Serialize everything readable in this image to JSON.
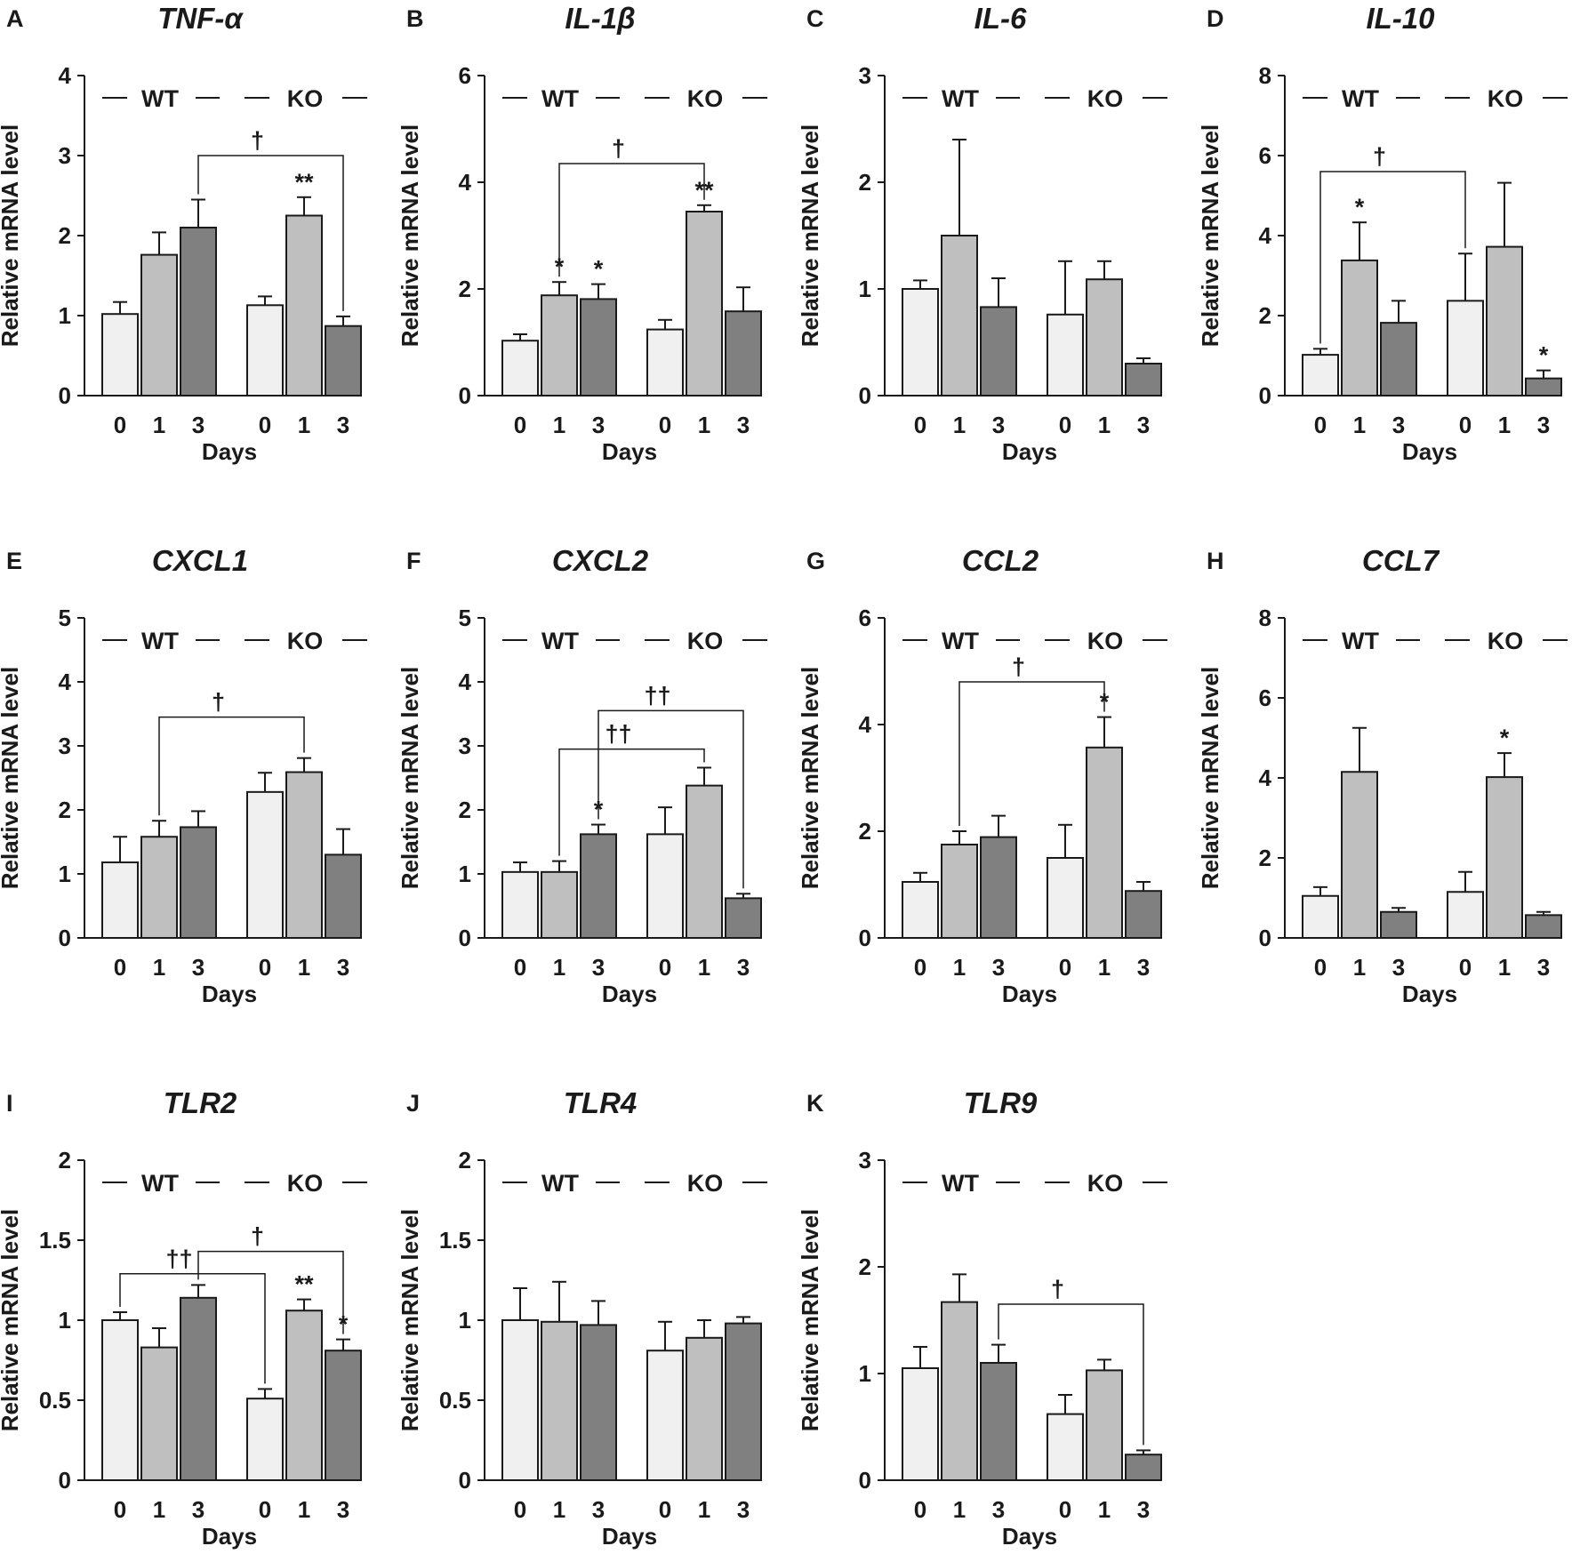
{
  "figure": {
    "xlabel": "Days",
    "ylabel": "Relative mRNA level",
    "groups": [
      "WT",
      "KO"
    ],
    "days": [
      "0",
      "1",
      "3"
    ],
    "day_colors": [
      "#f0f0f0",
      "#bfbfbf",
      "#808080"
    ]
  },
  "chart_data": [
    {
      "panel": "A",
      "title": "TNF-α",
      "type": "bar",
      "ylim": [
        0,
        4
      ],
      "ticks": [
        "0",
        "1",
        "2",
        "3",
        "4"
      ],
      "categories": [
        "WT 0",
        "WT 1",
        "WT 3",
        "KO 0",
        "KO 1",
        "KO 3"
      ],
      "values": [
        1.02,
        1.76,
        2.1,
        1.13,
        2.25,
        0.87
      ],
      "errors": [
        0.15,
        0.28,
        0.35,
        0.11,
        0.23,
        0.12
      ],
      "stars": [
        {
          "bar": 4,
          "text": "**"
        }
      ],
      "brackets": [
        {
          "from": 2,
          "to": 5,
          "y": 3.0,
          "text": "†"
        }
      ]
    },
    {
      "panel": "B",
      "title": "IL-1β",
      "type": "bar",
      "ylim": [
        0,
        6
      ],
      "ticks": [
        "0",
        "2",
        "4",
        "6"
      ],
      "categories": [
        "WT 0",
        "WT 1",
        "WT 3",
        "KO 0",
        "KO 1",
        "KO 3"
      ],
      "values": [
        1.03,
        1.88,
        1.81,
        1.24,
        3.45,
        1.58
      ],
      "errors": [
        0.12,
        0.25,
        0.28,
        0.18,
        0.12,
        0.45
      ],
      "stars": [
        {
          "bar": 1,
          "text": "*"
        },
        {
          "bar": 2,
          "text": "*"
        },
        {
          "bar": 4,
          "text": "**"
        }
      ],
      "brackets": [
        {
          "from": 1,
          "to": 4,
          "y": 4.35,
          "text": "†"
        }
      ]
    },
    {
      "panel": "C",
      "title": "IL-6",
      "type": "bar",
      "ylim": [
        0,
        3
      ],
      "ticks": [
        "0",
        "1",
        "2",
        "3"
      ],
      "categories": [
        "WT 0",
        "WT 1",
        "WT 3",
        "KO 0",
        "KO 1",
        "KO 3"
      ],
      "values": [
        1.0,
        1.5,
        0.83,
        0.76,
        1.09,
        0.3
      ],
      "errors": [
        0.08,
        0.9,
        0.27,
        0.5,
        0.17,
        0.05
      ],
      "stars": [],
      "brackets": []
    },
    {
      "panel": "D",
      "title": "IL-10",
      "type": "bar",
      "ylim": [
        0,
        8
      ],
      "ticks": [
        "0",
        "2",
        "4",
        "6",
        "8"
      ],
      "categories": [
        "WT 0",
        "WT 1",
        "WT 3",
        "KO 0",
        "KO 1",
        "KO 3"
      ],
      "values": [
        1.02,
        3.38,
        1.82,
        2.37,
        3.72,
        0.43
      ],
      "errors": [
        0.15,
        0.95,
        0.55,
        1.18,
        1.6,
        0.2
      ],
      "stars": [
        {
          "bar": 1,
          "text": "*"
        },
        {
          "bar": 5,
          "text": "*"
        }
      ],
      "brackets": [
        {
          "from": 0,
          "to": 3,
          "y": 5.6,
          "text": "†"
        }
      ]
    },
    {
      "panel": "E",
      "title": "CXCL1",
      "type": "bar",
      "ylim": [
        0,
        5
      ],
      "ticks": [
        "0",
        "1",
        "2",
        "3",
        "4",
        "5"
      ],
      "categories": [
        "WT 0",
        "WT 1",
        "WT 3",
        "KO 0",
        "KO 1",
        "KO 3"
      ],
      "values": [
        1.18,
        1.58,
        1.73,
        2.28,
        2.59,
        1.3
      ],
      "errors": [
        0.4,
        0.25,
        0.25,
        0.3,
        0.22,
        0.4
      ],
      "stars": [],
      "brackets": [
        {
          "from": 1,
          "to": 4,
          "y": 3.45,
          "text": "†"
        }
      ]
    },
    {
      "panel": "F",
      "title": "CXCL2",
      "type": "bar",
      "ylim": [
        0,
        5
      ],
      "ticks": [
        "0",
        "1",
        "2",
        "3",
        "4",
        "5"
      ],
      "categories": [
        "WT 0",
        "WT 1",
        "WT 3",
        "KO 0",
        "KO 1",
        "KO 3"
      ],
      "values": [
        1.03,
        1.03,
        1.62,
        1.62,
        2.38,
        0.62
      ],
      "errors": [
        0.15,
        0.17,
        0.15,
        0.42,
        0.28,
        0.07
      ],
      "stars": [
        {
          "bar": 2,
          "text": "*"
        }
      ],
      "brackets": [
        {
          "from": 1,
          "to": 4,
          "y": 2.95,
          "text": "††"
        },
        {
          "from": 2,
          "to": 5,
          "y": 3.55,
          "text": "††"
        }
      ]
    },
    {
      "panel": "G",
      "title": "CCL2",
      "type": "bar",
      "ylim": [
        0,
        6
      ],
      "ticks": [
        "0",
        "2",
        "4",
        "6"
      ],
      "categories": [
        "WT 0",
        "WT 1",
        "WT 3",
        "KO 0",
        "KO 1",
        "KO 3"
      ],
      "values": [
        1.05,
        1.75,
        1.89,
        1.5,
        3.57,
        0.88
      ],
      "errors": [
        0.17,
        0.25,
        0.4,
        0.62,
        0.57,
        0.17
      ],
      "stars": [
        {
          "bar": 4,
          "text": "*"
        }
      ],
      "brackets": [
        {
          "from": 1,
          "to": 4,
          "y": 4.8,
          "text": "†"
        }
      ]
    },
    {
      "panel": "H",
      "title": "CCL7",
      "type": "bar",
      "ylim": [
        0,
        8
      ],
      "ticks": [
        "0",
        "2",
        "4",
        "6",
        "8"
      ],
      "categories": [
        "WT 0",
        "WT 1",
        "WT 3",
        "KO 0",
        "KO 1",
        "KO 3"
      ],
      "values": [
        1.05,
        4.15,
        0.65,
        1.15,
        4.02,
        0.57
      ],
      "errors": [
        0.22,
        1.1,
        0.1,
        0.5,
        0.6,
        0.08
      ],
      "stars": [
        {
          "bar": 4,
          "text": "*"
        }
      ],
      "brackets": []
    },
    {
      "panel": "I",
      "title": "TLR2",
      "type": "bar",
      "ylim": [
        0,
        2
      ],
      "ticks": [
        "0",
        "0.5",
        "1",
        "1.5",
        "2"
      ],
      "categories": [
        "WT 0",
        "WT 1",
        "WT 3",
        "KO 0",
        "KO 1",
        "KO 3"
      ],
      "values": [
        1.0,
        0.83,
        1.14,
        0.51,
        1.06,
        0.81
      ],
      "errors": [
        0.05,
        0.12,
        0.08,
        0.06,
        0.07,
        0.07
      ],
      "stars": [
        {
          "bar": 4,
          "text": "**"
        },
        {
          "bar": 5,
          "text": "*"
        }
      ],
      "brackets": [
        {
          "from": 0,
          "to": 3,
          "y": 1.29,
          "text": "††"
        },
        {
          "from": 2,
          "to": 5,
          "y": 1.43,
          "text": "†"
        }
      ]
    },
    {
      "panel": "J",
      "title": "TLR4",
      "type": "bar",
      "ylim": [
        0,
        2
      ],
      "ticks": [
        "0",
        "0.5",
        "1",
        "1.5",
        "2"
      ],
      "categories": [
        "WT 0",
        "WT 1",
        "WT 3",
        "KO 0",
        "KO 1",
        "KO 3"
      ],
      "values": [
        1.0,
        0.99,
        0.97,
        0.81,
        0.89,
        0.98
      ],
      "errors": [
        0.2,
        0.25,
        0.15,
        0.18,
        0.11,
        0.04
      ],
      "stars": [],
      "brackets": []
    },
    {
      "panel": "K",
      "title": "TLR9",
      "type": "bar",
      "ylim": [
        0,
        3
      ],
      "ticks": [
        "0",
        "1",
        "2",
        "3"
      ],
      "categories": [
        "WT 0",
        "WT 1",
        "WT 3",
        "KO 0",
        "KO 1",
        "KO 3"
      ],
      "values": [
        1.05,
        1.67,
        1.1,
        0.62,
        1.03,
        0.24
      ],
      "errors": [
        0.2,
        0.26,
        0.17,
        0.18,
        0.1,
        0.04
      ],
      "stars": [],
      "brackets": [
        {
          "from": 2,
          "to": 5,
          "y": 1.65,
          "text": "†"
        }
      ]
    }
  ]
}
